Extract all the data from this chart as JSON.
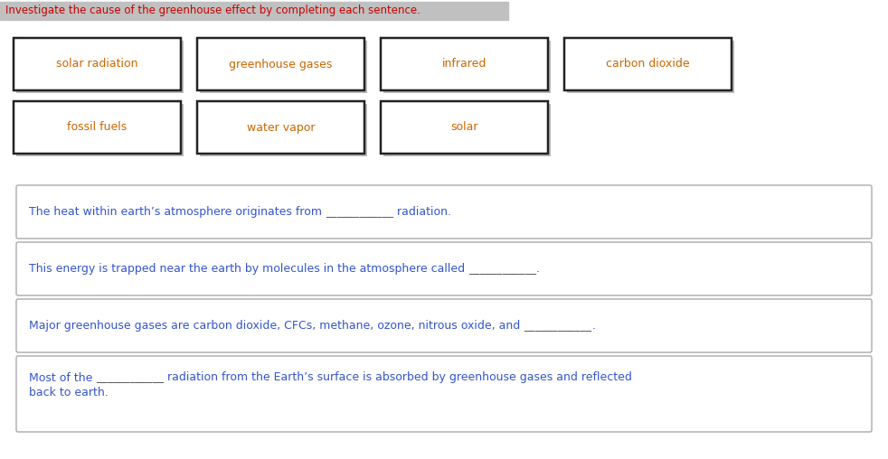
{
  "title": "Investigate the cause of the greenhouse effect by completing each sentence.",
  "title_bg": "#c0c0c0",
  "title_color": "#cc0000",
  "title_fontsize": 8.5,
  "word_boxes": [
    {
      "label": "solar radiation",
      "row": 0,
      "col": 0
    },
    {
      "label": "greenhouse gases",
      "row": 0,
      "col": 1
    },
    {
      "label": "infrared",
      "row": 0,
      "col": 2
    },
    {
      "label": "carbon dioxide",
      "row": 0,
      "col": 3
    },
    {
      "label": "fossil fuels",
      "row": 1,
      "col": 0
    },
    {
      "label": "water vapor",
      "row": 1,
      "col": 1
    },
    {
      "label": "solar",
      "row": 1,
      "col": 2
    }
  ],
  "word_text_color": "#cc6600",
  "word_box_edge_color": "#222222",
  "word_box_bg": "#ffffff",
  "sentences": [
    {
      "parts": [
        {
          "text": "The heat within earth’s atmosphere originates from ",
          "color": "#3355cc",
          "underline": false
        },
        {
          "text": "____________",
          "color": "#555555",
          "underline": false
        },
        {
          "text": " radiation.",
          "color": "#3355cc",
          "underline": false
        }
      ]
    },
    {
      "parts": [
        {
          "text": "This energy is trapped near the earth by molecules in the atmosphere called ",
          "color": "#3355cc",
          "underline": false
        },
        {
          "text": "____________",
          "color": "#555555",
          "underline": false
        },
        {
          "text": ".",
          "color": "#3355cc",
          "underline": false
        }
      ]
    },
    {
      "parts": [
        {
          "text": "Major greenhouse gases are carbon dioxide, CFCs, methane, ozone, nitrous oxide, and ",
          "color": "#3355cc",
          "underline": false
        },
        {
          "text": "____________",
          "color": "#555555",
          "underline": false
        },
        {
          "text": ".",
          "color": "#3355cc",
          "underline": false
        }
      ]
    },
    {
      "parts": [
        {
          "text": "Most of the ",
          "color": "#3355cc",
          "underline": false
        },
        {
          "text": "____________",
          "color": "#555555",
          "underline": false
        },
        {
          "text": " radiation from the Earth’s surface is absorbed by greenhouse gases and reflected",
          "color": "#3355cc",
          "underline": false
        }
      ],
      "second_line": "back to earth.",
      "second_line_color": "#3355cc"
    }
  ],
  "sentence_box_edge_color": "#aaaaaa",
  "sentence_box_bg": "#ffffff",
  "background_color": "#ffffff",
  "fig_width": 9.82,
  "fig_height": 5.08
}
